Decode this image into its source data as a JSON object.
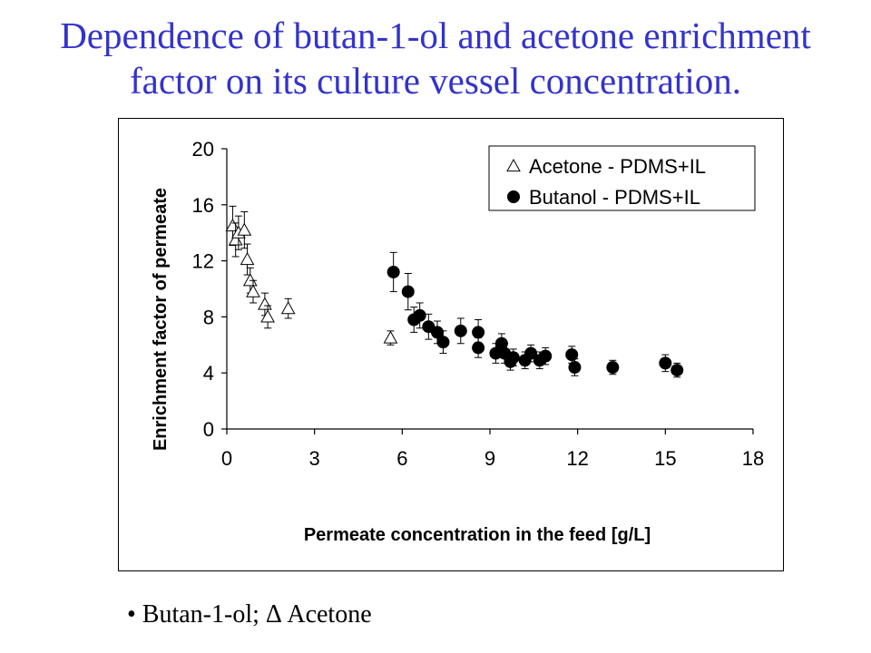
{
  "title": {
    "line1": "Dependence of butan-1-ol and acetone enrichment",
    "line2": "factor on its culture vessel concentration."
  },
  "caption": "• Butan-1-ol;  Δ Acetone",
  "colors": {
    "title": "#3333cc",
    "axes": "#000000"
  },
  "chart_data": {
    "type": "scatter",
    "xlabel": "Permeate concentration in the feed [g/L]",
    "ylabel": "Enrichment factor of permeate",
    "xlim": [
      0,
      18
    ],
    "ylim": [
      0,
      20
    ],
    "xticks": [
      "0",
      "3",
      "6",
      "9",
      "12",
      "15",
      "18"
    ],
    "yticks": [
      "0",
      "4",
      "8",
      "12",
      "16",
      "20"
    ],
    "grid": false,
    "legend_position": "top-right",
    "series": [
      {
        "name": "Acetone - PDMS+IL",
        "marker": "open-triangle",
        "x": [
          0.2,
          0.3,
          0.4,
          0.6,
          0.7,
          0.8,
          0.9,
          1.3,
          1.4,
          2.1,
          5.6
        ],
        "y": [
          14.5,
          13.5,
          14.0,
          14.2,
          12.1,
          10.6,
          9.8,
          8.9,
          8.0,
          8.6,
          6.5
        ],
        "err": [
          1.4,
          1.2,
          1.2,
          1.3,
          1.1,
          0.9,
          0.8,
          0.8,
          0.8,
          0.7,
          0.5
        ]
      },
      {
        "name": "Butanol - PDMS+IL",
        "marker": "filled-circle",
        "x": [
          5.7,
          6.2,
          6.4,
          6.6,
          6.9,
          7.2,
          7.4,
          8.0,
          8.6,
          8.6,
          9.2,
          9.4,
          9.5,
          9.7,
          9.8,
          10.2,
          10.4,
          10.7,
          10.9,
          11.8,
          11.9,
          13.2,
          15.0,
          15.4
        ],
        "y": [
          11.2,
          9.8,
          7.8,
          8.1,
          7.3,
          6.9,
          6.2,
          7.0,
          6.9,
          5.8,
          5.4,
          6.1,
          5.4,
          4.8,
          5.1,
          4.9,
          5.4,
          4.9,
          5.2,
          5.3,
          4.4,
          4.4,
          4.7,
          4.2
        ],
        "err": [
          1.4,
          1.3,
          0.9,
          0.9,
          0.9,
          0.8,
          0.8,
          0.9,
          0.9,
          0.7,
          0.7,
          0.7,
          0.7,
          0.6,
          0.6,
          0.6,
          0.6,
          0.6,
          0.6,
          0.6,
          0.6,
          0.5,
          0.6,
          0.5
        ]
      }
    ]
  }
}
